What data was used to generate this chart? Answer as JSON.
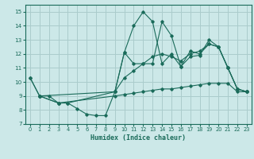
{
  "background_color": "#cce8e8",
  "grid_color": "#aacccc",
  "line_color": "#1a6b5a",
  "xlabel": "Humidex (Indice chaleur)",
  "xlim": [
    -0.5,
    23.5
  ],
  "ylim": [
    7,
    15.5
  ],
  "yticks": [
    7,
    8,
    9,
    10,
    11,
    12,
    13,
    14,
    15
  ],
  "xticks": [
    0,
    1,
    2,
    3,
    4,
    5,
    6,
    7,
    8,
    9,
    10,
    11,
    12,
    13,
    14,
    15,
    16,
    17,
    18,
    19,
    20,
    21,
    22,
    23
  ],
  "series": [
    {
      "x": [
        0,
        1,
        2,
        3,
        4,
        5,
        6,
        7,
        8,
        9,
        10,
        11,
        12,
        13,
        14,
        15,
        16,
        17,
        18,
        19,
        20,
        21,
        22,
        23
      ],
      "y": [
        10.3,
        9.0,
        9.0,
        8.5,
        8.5,
        8.1,
        7.7,
        7.6,
        7.6,
        9.3,
        12.1,
        11.3,
        11.3,
        11.3,
        14.3,
        13.3,
        11.1,
        11.8,
        11.9,
        13.0,
        12.5,
        11.0,
        9.5,
        9.3
      ]
    },
    {
      "x": [
        0,
        1,
        3,
        4,
        9,
        10,
        11,
        12,
        13,
        14,
        15,
        16,
        17,
        18,
        19,
        20,
        21,
        22,
        23
      ],
      "y": [
        10.3,
        9.0,
        8.5,
        8.5,
        9.3,
        12.1,
        14.0,
        15.0,
        14.3,
        11.3,
        12.0,
        11.1,
        12.2,
        12.0,
        12.7,
        12.5,
        11.0,
        9.5,
        9.3
      ]
    },
    {
      "x": [
        1,
        3,
        9,
        10,
        11,
        12,
        13,
        14,
        15,
        16,
        17,
        18,
        19,
        20,
        21,
        22,
        23
      ],
      "y": [
        9.0,
        8.5,
        9.0,
        9.1,
        9.2,
        9.3,
        9.4,
        9.5,
        9.5,
        9.6,
        9.7,
        9.8,
        9.9,
        9.9,
        9.9,
        9.3,
        9.3
      ]
    },
    {
      "x": [
        1,
        9,
        10,
        11,
        12,
        13,
        14,
        15,
        16,
        17,
        18,
        19,
        20,
        21,
        22,
        23
      ],
      "y": [
        9.0,
        9.3,
        10.3,
        10.8,
        11.3,
        11.8,
        12.0,
        11.8,
        11.5,
        12.0,
        12.2,
        12.7,
        12.5,
        11.0,
        9.5,
        9.3
      ]
    }
  ]
}
